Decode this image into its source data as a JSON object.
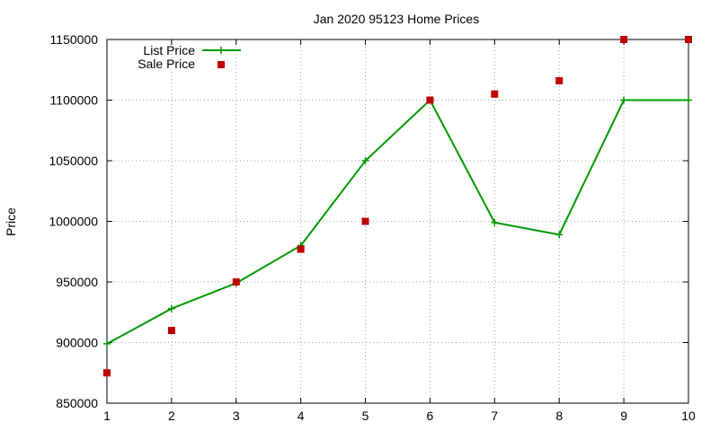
{
  "chart_data": {
    "type": "line",
    "title": "Jan 2020 95123 Home Prices",
    "xlabel": "",
    "ylabel": "Price",
    "x": [
      1,
      2,
      3,
      4,
      5,
      6,
      7,
      8,
      9,
      10
    ],
    "xlim": [
      1,
      10
    ],
    "ylim": [
      850000,
      1150000
    ],
    "x_ticks": [
      1,
      2,
      3,
      4,
      5,
      6,
      7,
      8,
      9,
      10
    ],
    "y_ticks": [
      850000,
      900000,
      950000,
      1000000,
      1050000,
      1100000,
      1150000
    ],
    "grid": true,
    "legend_position": "top-left",
    "series": [
      {
        "name": "List Price",
        "style": "linespoints",
        "marker": "plus",
        "color": "#009900",
        "values": [
          899000,
          928000,
          949000,
          980000,
          1050000,
          1100000,
          999000,
          989000,
          1100000,
          1100000
        ]
      },
      {
        "name": "Sale Price",
        "style": "points",
        "marker": "square",
        "color": "#c00000",
        "values": [
          875000,
          910000,
          950000,
          977000,
          1000000,
          1100000,
          1105000,
          1116000,
          1150000,
          1150000
        ]
      }
    ]
  }
}
